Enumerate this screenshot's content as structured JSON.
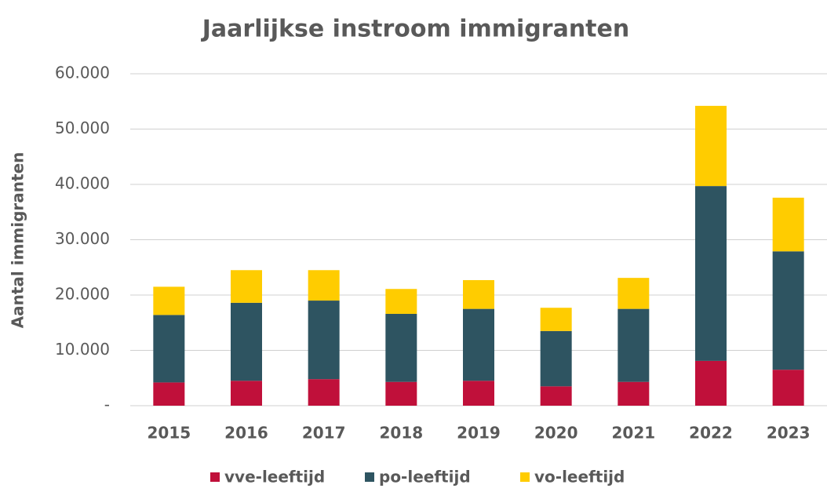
{
  "chart_data": {
    "type": "stacked_bar",
    "title": "Jaarlijkse instroom immigranten",
    "y_label": "Aantal immigranten",
    "categories": [
      "2015",
      "2016",
      "2017",
      "2018",
      "2019",
      "2020",
      "2021",
      "2022",
      "2023"
    ],
    "series": [
      {
        "name": "vve-leeftijd",
        "color": "#c0103a",
        "values": [
          4200,
          4500,
          4800,
          4300,
          4500,
          3500,
          4300,
          8100,
          6500
        ]
      },
      {
        "name": "po-leeftijd",
        "color": "#2e5461",
        "values": [
          12200,
          14100,
          14200,
          12300,
          13000,
          10000,
          13200,
          31600,
          21400
        ]
      },
      {
        "name": "vo-leeftijd",
        "color": "#ffcc00",
        "values": [
          5100,
          5900,
          5500,
          4500,
          5200,
          4200,
          5600,
          14500,
          9700
        ]
      }
    ],
    "ylim": [
      0,
      60000
    ],
    "yticks": [
      {
        "value": 0,
        "label": "-"
      },
      {
        "value": 10000,
        "label": "10.000"
      },
      {
        "value": 20000,
        "label": "20.000"
      },
      {
        "value": 30000,
        "label": "30.000"
      },
      {
        "value": 40000,
        "label": "40.000"
      },
      {
        "value": 50000,
        "label": "50.000"
      },
      {
        "value": 60000,
        "label": "60.000"
      }
    ],
    "grid": true,
    "legend": "bottom"
  }
}
